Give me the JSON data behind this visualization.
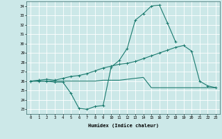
{
  "xlabel": "Humidex (Indice chaleur)",
  "x": [
    0,
    1,
    2,
    3,
    4,
    5,
    6,
    7,
    8,
    9,
    10,
    11,
    12,
    13,
    14,
    15,
    16,
    17,
    18,
    19,
    20,
    21,
    22,
    23
  ],
  "line1": [
    26.0,
    26.0,
    26.0,
    25.9,
    25.9,
    24.7,
    23.1,
    23.0,
    23.3,
    23.4,
    27.5,
    28.2,
    29.5,
    32.5,
    33.2,
    34.0,
    34.1,
    32.2,
    30.2,
    null,
    null,
    null,
    null,
    null
  ],
  "line2": [
    26.0,
    26.1,
    26.2,
    26.1,
    26.3,
    26.5,
    26.6,
    26.8,
    27.1,
    27.4,
    27.6,
    27.8,
    27.9,
    28.1,
    28.4,
    28.7,
    29.0,
    29.3,
    29.6,
    29.8,
    29.2,
    26.0,
    25.5,
    25.3
  ],
  "line3": [
    26.0,
    26.0,
    26.0,
    26.0,
    26.0,
    26.0,
    26.0,
    26.0,
    26.0,
    26.1,
    26.1,
    26.1,
    26.2,
    26.3,
    26.4,
    25.3,
    25.3,
    25.3,
    25.3,
    25.3,
    25.3,
    25.3,
    25.3,
    25.3
  ],
  "color": "#1a7a6e",
  "bg_color": "#cce8e8",
  "grid_color": "#b0d8d8",
  "ylim_min": 22.5,
  "ylim_max": 34.5,
  "yticks": [
    23,
    24,
    25,
    26,
    27,
    28,
    29,
    30,
    31,
    32,
    33,
    34
  ],
  "xticks": [
    0,
    1,
    2,
    3,
    4,
    5,
    6,
    7,
    8,
    9,
    10,
    11,
    12,
    13,
    14,
    15,
    16,
    17,
    18,
    19,
    20,
    21,
    22,
    23
  ]
}
